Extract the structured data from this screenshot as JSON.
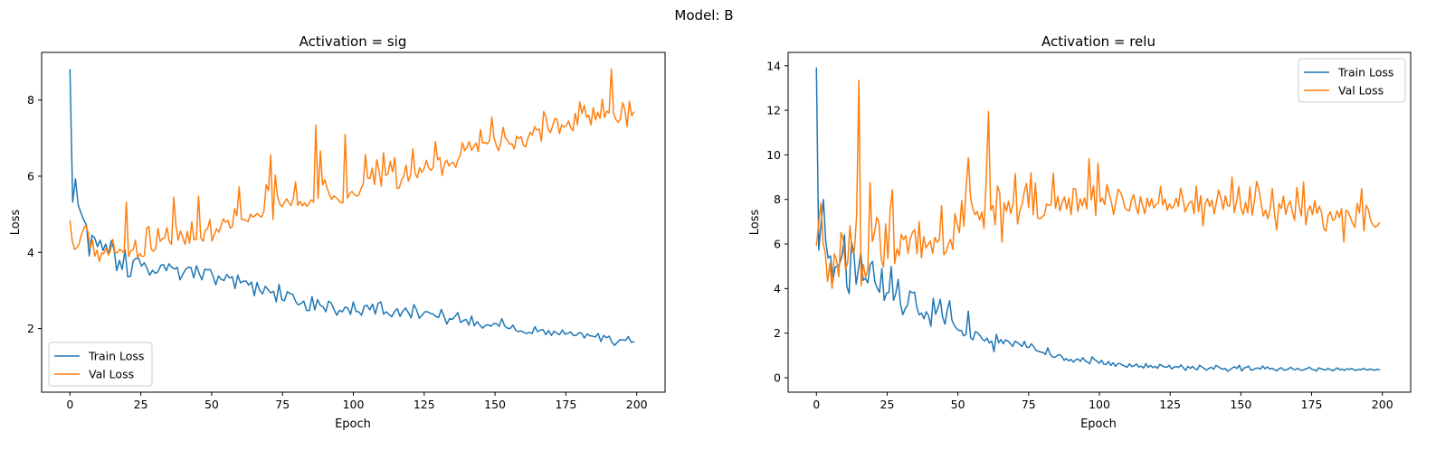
{
  "figure": {
    "suptitle": "Model: B"
  },
  "colors": {
    "train": "#1f77b4",
    "val": "#ff7f0e",
    "axis": "#000000",
    "legend_border": "#cccccc"
  },
  "chart_data": [
    {
      "type": "line",
      "title": "Activation = sig",
      "xlabel": "Epoch",
      "ylabel": "Loss",
      "xlim": [
        -10,
        210
      ],
      "ylim": [
        0.33,
        9.25
      ],
      "xticks": [
        0,
        25,
        50,
        75,
        100,
        125,
        150,
        175,
        200
      ],
      "yticks": [
        2,
        4,
        6,
        8
      ],
      "legend": {
        "position": "lower-left",
        "entries": [
          "Train Loss",
          "Val Loss"
        ]
      },
      "series": [
        {
          "name": "Train Loss",
          "color": "#1f77b4",
          "x_start": 0,
          "values": [
            8.8,
            5.32,
            5.93,
            5.24,
            5.04,
            4.85,
            4.72,
            3.91,
            4.45,
            4.38,
            4.15,
            4.32,
            4.05,
            4.22,
            3.94,
            4.31,
            4.09,
            3.52,
            3.79,
            3.55,
            4.07,
            3.36,
            3.37,
            3.78,
            3.84,
            3.84,
            3.64,
            3.73,
            3.58,
            3.4,
            3.53,
            3.45,
            3.49,
            3.66,
            3.68,
            3.52,
            3.7,
            3.61,
            3.56,
            3.61,
            3.28,
            3.42,
            3.55,
            3.61,
            3.6,
            3.33,
            3.65,
            3.44,
            3.28,
            3.56,
            3.54,
            3.55,
            3.38,
            3.15,
            3.38,
            3.29,
            3.26,
            3.42,
            3.33,
            3.36,
            3.05,
            3.4,
            3.2,
            3.24,
            3.25,
            3.14,
            3.22,
            2.86,
            3.21,
            3.0,
            2.91,
            3.11,
            3.02,
            2.94,
            2.98,
            2.7,
            3.16,
            2.76,
            2.73,
            2.97,
            2.92,
            2.9,
            2.72,
            2.62,
            2.66,
            2.72,
            2.48,
            2.47,
            2.84,
            2.49,
            2.76,
            2.61,
            2.57,
            2.44,
            2.72,
            2.67,
            2.5,
            2.35,
            2.48,
            2.44,
            2.56,
            2.54,
            2.37,
            2.7,
            2.45,
            2.44,
            2.35,
            2.59,
            2.61,
            2.49,
            2.64,
            2.38,
            2.66,
            2.7,
            2.38,
            2.44,
            2.37,
            2.31,
            2.45,
            2.52,
            2.32,
            2.46,
            2.54,
            2.42,
            2.28,
            2.63,
            2.49,
            2.27,
            2.35,
            2.44,
            2.44,
            2.4,
            2.38,
            2.32,
            2.29,
            2.5,
            2.31,
            2.12,
            2.26,
            2.24,
            2.32,
            2.42,
            2.16,
            2.21,
            2.24,
            2.09,
            2.33,
            2.07,
            2.18,
            2.09,
            2.01,
            2.08,
            2.1,
            2.06,
            2.13,
            2.13,
            2.06,
            2.26,
            2.07,
            2.01,
            2.0,
            2.09,
            1.96,
            1.92,
            1.94,
            1.9,
            1.87,
            1.9,
            1.87,
            2.05,
            1.92,
            1.96,
            1.97,
            1.84,
            1.95,
            1.82,
            1.93,
            1.88,
            1.84,
            1.96,
            1.85,
            1.88,
            1.91,
            1.82,
            1.82,
            1.89,
            1.88,
            1.75,
            1.86,
            1.81,
            1.8,
            1.78,
            1.87,
            1.66,
            1.82,
            1.76,
            1.8,
            1.64,
            1.56,
            1.64,
            1.71,
            1.7,
            1.69,
            1.79,
            1.64,
            1.65
          ]
        },
        {
          "name": "Val Loss",
          "color": "#ff7f0e",
          "x_start": 0,
          "values": [
            4.82,
            4.31,
            4.08,
            4.12,
            4.21,
            4.45,
            4.6,
            4.72,
            4.53,
            4.11,
            4.32,
            3.9,
            4.06,
            3.76,
            3.98,
            3.97,
            4.11,
            3.93,
            4.06,
            4.34,
            3.99,
            3.99,
            4.08,
            4.04,
            3.99,
            5.32,
            3.89,
            4.04,
            4.07,
            4.32,
            3.86,
            3.97,
            3.89,
            3.91,
            4.63,
            4.68,
            4.08,
            4.03,
            4.1,
            4.63,
            4.29,
            4.36,
            4.38,
            4.65,
            4.3,
            4.21,
            5.45,
            4.7,
            4.32,
            4.56,
            4.39,
            4.21,
            4.55,
            4.24,
            4.8,
            4.33,
            4.34,
            5.48,
            4.38,
            4.29,
            4.59,
            4.62,
            4.86,
            4.3,
            4.47,
            4.62,
            4.53,
            4.7,
            4.88,
            4.79,
            4.84,
            4.64,
            4.68,
            5.15,
            4.96,
            5.72,
            4.87,
            4.86,
            4.84,
            4.81,
            5.0,
            4.93,
            4.96,
            5.02,
            4.96,
            4.93,
            5.09,
            5.78,
            5.62,
            6.56,
            4.86,
            6.03,
            5.47,
            5.27,
            5.2,
            5.3,
            5.41,
            5.31,
            5.23,
            5.41,
            5.85,
            5.23,
            5.34,
            5.22,
            5.3,
            5.21,
            5.28,
            5.38,
            5.32,
            7.34,
            5.42,
            6.66,
            5.77,
            5.91,
            5.68,
            5.52,
            5.39,
            5.48,
            5.44,
            5.38,
            5.31,
            5.3,
            7.1,
            5.42,
            5.54,
            5.6,
            5.52,
            5.48,
            5.5,
            5.67,
            5.8,
            6.57,
            5.95,
            5.94,
            6.21,
            5.78,
            6.43,
            6.16,
            5.74,
            6.62,
            6.02,
            6.06,
            6.39,
            6.11,
            6.49,
            5.68,
            5.69,
            5.91,
            6.0,
            6.29,
            5.87,
            6.02,
            6.72,
            6.07,
            5.96,
            6.22,
            6.1,
            6.2,
            6.42,
            6.23,
            6.15,
            6.23,
            6.91,
            6.43,
            6.49,
            6.02,
            6.33,
            6.42,
            6.27,
            6.34,
            6.36,
            6.23,
            6.43,
            6.54,
            6.88,
            6.67,
            6.75,
            6.91,
            6.68,
            6.77,
            6.87,
            6.65,
            7.22,
            6.87,
            6.89,
            6.85,
            6.94,
            7.55,
            7.01,
            6.81,
            6.67,
            6.9,
            7.28,
            7.01,
            6.94,
            6.84,
            6.85,
            6.72,
            7.05,
            6.99,
            7.04,
            6.82,
            6.77,
            6.99,
            7.15,
            7.09,
            7.3,
            7.21,
            7.24,
            6.92,
            7.7,
            7.55,
            7.23,
            7.14,
            7.33,
            7.52,
            7.48,
            7.12,
            7.35,
            7.29,
            7.32,
            7.45,
            7.27,
            7.19,
            7.65,
            7.35,
            7.95,
            7.65,
            7.86,
            7.55,
            7.6,
            7.35,
            7.8,
            7.48,
            7.68,
            7.52,
            8.02,
            7.54,
            7.71,
            7.66,
            8.81,
            7.66,
            7.49,
            7.42,
            7.5,
            7.93,
            7.74,
            7.3,
            7.97,
            7.59,
            7.68
          ]
        }
      ]
    },
    {
      "type": "line",
      "title": "Activation = relu",
      "xlabel": "Epoch",
      "ylabel": "Loss",
      "xlim": [
        -10,
        210
      ],
      "ylim": [
        -0.65,
        14.6
      ],
      "xticks": [
        0,
        25,
        50,
        75,
        100,
        125,
        150,
        175,
        200
      ],
      "yticks": [
        0,
        2,
        4,
        6,
        8,
        10,
        12,
        14
      ],
      "legend": {
        "position": "upper-right",
        "entries": [
          "Train Loss",
          "Val Loss"
        ]
      },
      "series": [
        {
          "name": "Train Loss",
          "color": "#1f77b4",
          "x_start": 0,
          "values": [
            13.9,
            5.73,
            6.94,
            8.0,
            6.1,
            5.37,
            5.47,
            4.32,
            4.97,
            4.98,
            5.14,
            5.51,
            6.41,
            4.11,
            3.77,
            6.11,
            5.64,
            4.19,
            4.89,
            5.64,
            4.37,
            4.46,
            4.25,
            5.08,
            5.22,
            4.31,
            4.03,
            3.83,
            4.9,
            3.47,
            3.79,
            3.82,
            4.99,
            3.47,
            3.79,
            4.41,
            3.28,
            2.83,
            3.1,
            3.25,
            3.89,
            3.81,
            3.84,
            3.14,
            2.82,
            2.9,
            2.64,
            2.96,
            2.78,
            2.31,
            3.56,
            2.85,
            3.13,
            3.52,
            2.72,
            2.4,
            3.04,
            3.46,
            2.58,
            2.36,
            2.2,
            2.12,
            2.12,
            1.88,
            1.94,
            2.99,
            1.79,
            1.7,
            2.06,
            2.02,
            1.89,
            1.73,
            1.65,
            1.78,
            1.56,
            1.65,
            1.17,
            1.95,
            1.57,
            1.71,
            1.52,
            1.7,
            1.64,
            1.53,
            1.4,
            1.64,
            1.58,
            1.49,
            1.4,
            1.63,
            1.37,
            1.36,
            1.52,
            1.39,
            1.22,
            1.19,
            1.15,
            1.13,
            1.04,
            1.34,
            1.06,
            0.94,
            0.91,
            0.99,
            1.04,
            0.96,
            0.78,
            0.86,
            0.75,
            0.82,
            0.7,
            0.81,
            0.84,
            0.73,
            0.9,
            0.76,
            0.7,
            0.63,
            0.94,
            0.81,
            0.75,
            0.65,
            0.78,
            0.61,
            0.59,
            0.73,
            0.55,
            0.67,
            0.51,
            0.63,
            0.64,
            0.56,
            0.52,
            0.47,
            0.62,
            0.5,
            0.54,
            0.61,
            0.48,
            0.52,
            0.43,
            0.63,
            0.46,
            0.55,
            0.45,
            0.51,
            0.42,
            0.6,
            0.53,
            0.48,
            0.47,
            0.56,
            0.39,
            0.47,
            0.5,
            0.46,
            0.57,
            0.45,
            0.33,
            0.51,
            0.42,
            0.51,
            0.4,
            0.36,
            0.56,
            0.48,
            0.41,
            0.34,
            0.42,
            0.47,
            0.38,
            0.55,
            0.49,
            0.42,
            0.38,
            0.41,
            0.29,
            0.35,
            0.44,
            0.49,
            0.41,
            0.56,
            0.3,
            0.43,
            0.47,
            0.52,
            0.34,
            0.36,
            0.42,
            0.44,
            0.38,
            0.53,
            0.4,
            0.49,
            0.39,
            0.42,
            0.36,
            0.31,
            0.4,
            0.45,
            0.34,
            0.36,
            0.39,
            0.47,
            0.38,
            0.36,
            0.42,
            0.35,
            0.33,
            0.38,
            0.41,
            0.47,
            0.38,
            0.35,
            0.3,
            0.44,
            0.4,
            0.37,
            0.34,
            0.42,
            0.36,
            0.31,
            0.38,
            0.44,
            0.35,
            0.39,
            0.33,
            0.4,
            0.37,
            0.41,
            0.36,
            0.32,
            0.38,
            0.35,
            0.42,
            0.37,
            0.34,
            0.39,
            0.36,
            0.33,
            0.38,
            0.35
          ]
        },
        {
          "name": "Val Loss",
          "color": "#ff7f0e",
          "x_start": 0,
          "values": [
            5.94,
            6.91,
            7.83,
            6.02,
            5.58,
            4.32,
            5.13,
            4.01,
            5.56,
            5.29,
            4.53,
            6.52,
            6.16,
            4.86,
            5.17,
            6.82,
            5.62,
            5.72,
            7.31,
            13.35,
            4.13,
            5.08,
            4.52,
            4.86,
            8.77,
            6.11,
            6.5,
            7.2,
            6.96,
            5.33,
            4.97,
            6.9,
            5.35,
            7.52,
            8.44,
            5.12,
            5.78,
            5.47,
            6.43,
            6.2,
            6.38,
            5.58,
            6.23,
            6.53,
            6.65,
            5.57,
            7.0,
            5.38,
            6.34,
            5.82,
            5.98,
            6.13,
            5.57,
            6.3,
            6.08,
            6.19,
            7.72,
            5.52,
            5.63,
            5.99,
            6.21,
            5.75,
            7.37,
            6.88,
            6.51,
            7.95,
            6.8,
            8.59,
            9.88,
            8.04,
            7.59,
            7.31,
            7.46,
            7.09,
            7.43,
            6.7,
            8.94,
            11.95,
            7.52,
            7.73,
            6.86,
            8.6,
            8.33,
            6.09,
            7.85,
            7.47,
            7.92,
            7.36,
            7.82,
            9.16,
            6.9,
            7.48,
            7.75,
            8.34,
            8.72,
            7.64,
            9.2,
            7.31,
            8.74,
            7.17,
            7.13,
            7.22,
            7.3,
            7.79,
            7.73,
            7.78,
            9.19,
            7.61,
            8.14,
            7.48,
            7.88,
            8.11,
            7.57,
            8.06,
            7.32,
            8.5,
            8.46,
            7.46,
            8.03,
            7.71,
            8.07,
            7.58,
            9.83,
            7.98,
            8.62,
            7.29,
            9.63,
            7.88,
            8.06,
            7.76,
            8.67,
            8.24,
            7.89,
            7.32,
            7.86,
            8.46,
            8.33,
            8.09,
            7.64,
            7.53,
            7.49,
            7.96,
            8.22,
            7.68,
            7.35,
            8.12,
            7.71,
            7.36,
            8.06,
            7.68,
            8.03,
            7.62,
            7.78,
            7.83,
            8.58,
            7.75,
            8.03,
            7.52,
            7.8,
            7.59,
            7.73,
            8.06,
            7.69,
            8.51,
            8.05,
            7.44,
            7.68,
            7.86,
            7.93,
            7.36,
            8.6,
            7.45,
            8.17,
            6.82,
            7.81,
            8.04,
            7.68,
            7.97,
            7.35,
            7.87,
            8.42,
            8.08,
            7.55,
            8.16,
            7.72,
            7.71,
            9.0,
            7.41,
            7.89,
            8.57,
            7.62,
            7.32,
            7.87,
            7.39,
            8.56,
            7.3,
            7.91,
            8.81,
            8.47,
            7.84,
            7.26,
            7.53,
            7.14,
            7.56,
            8.49,
            7.34,
            6.63,
            7.82,
            7.59,
            8.15,
            7.33,
            7.73,
            7.92,
            7.45,
            7.06,
            8.53,
            7.71,
            7.26,
            8.78,
            6.86,
            7.5,
            7.71,
            7.32,
            7.95,
            7.37,
            7.69,
            7.44,
            6.7,
            6.58,
            7.27,
            7.45,
            7.06,
            7.11,
            7.49,
            7.19,
            7.59,
            6.09,
            7.52,
            7.44,
            7.19,
            6.91,
            6.75,
            7.82,
            7.4,
            8.49,
            6.58,
            7.74,
            7.55,
            7.06,
            6.87,
            6.75,
            6.82,
            6.95
          ]
        }
      ]
    }
  ]
}
